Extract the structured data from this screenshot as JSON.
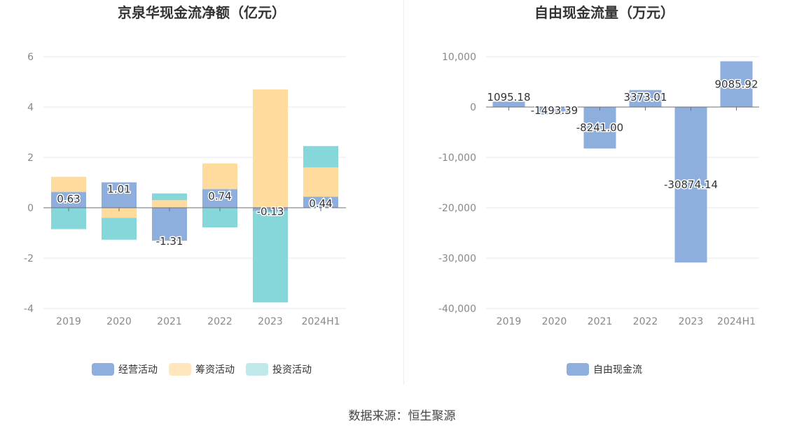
{
  "source": "数据来源：恒生聚源",
  "colors": {
    "operating": "#8eaedd",
    "financing": "#ffdb9e",
    "investing": "#86d7da",
    "axis": "#6e7079",
    "grid": "#e8eaf0",
    "tick": "#888888"
  },
  "chart_data": [
    {
      "type": "bar",
      "title": "京泉华现金流净额（亿元）",
      "categories": [
        "2019",
        "2020",
        "2021",
        "2022",
        "2023",
        "2024H1"
      ],
      "ylim": [
        -4,
        6
      ],
      "yticks": [
        "6",
        "4",
        "2",
        "0",
        "-2",
        "-4"
      ],
      "stacked": true,
      "series": [
        {
          "name": "经营活动",
          "values": [
            0.63,
            1.01,
            -1.31,
            0.74,
            -0.13,
            0.44
          ]
        },
        {
          "name": "筹资活动",
          "values": [
            0.6,
            -0.4,
            0.3,
            1.02,
            4.7,
            1.16
          ]
        },
        {
          "name": "投资活动",
          "values": [
            -0.85,
            -0.87,
            0.27,
            -0.78,
            -3.63,
            0.85
          ]
        }
      ],
      "data_labels": [
        "0.63",
        "1.01",
        "-1.31",
        "0.74",
        "-0.13",
        "0.44"
      ],
      "legend": "bottom",
      "grid": true
    },
    {
      "type": "bar",
      "title": "自由现金流量（万元）",
      "categories": [
        "2019",
        "2020",
        "2021",
        "2022",
        "2023",
        "2024H1"
      ],
      "ylim": [
        -40000,
        10000
      ],
      "yticks": [
        "10,000",
        "0",
        "-10,000",
        "-20,000",
        "-30,000",
        "-40,000"
      ],
      "series": [
        {
          "name": "自由现金流",
          "values": [
            1095.18,
            -1493.39,
            -8241.0,
            3373.01,
            -30874.14,
            9085.92
          ]
        }
      ],
      "data_labels": [
        "1095.18",
        "-1493.39",
        "-8241.00",
        "3373.01",
        "-30874.14",
        "9085.92"
      ],
      "legend": "bottom",
      "grid": true
    }
  ]
}
